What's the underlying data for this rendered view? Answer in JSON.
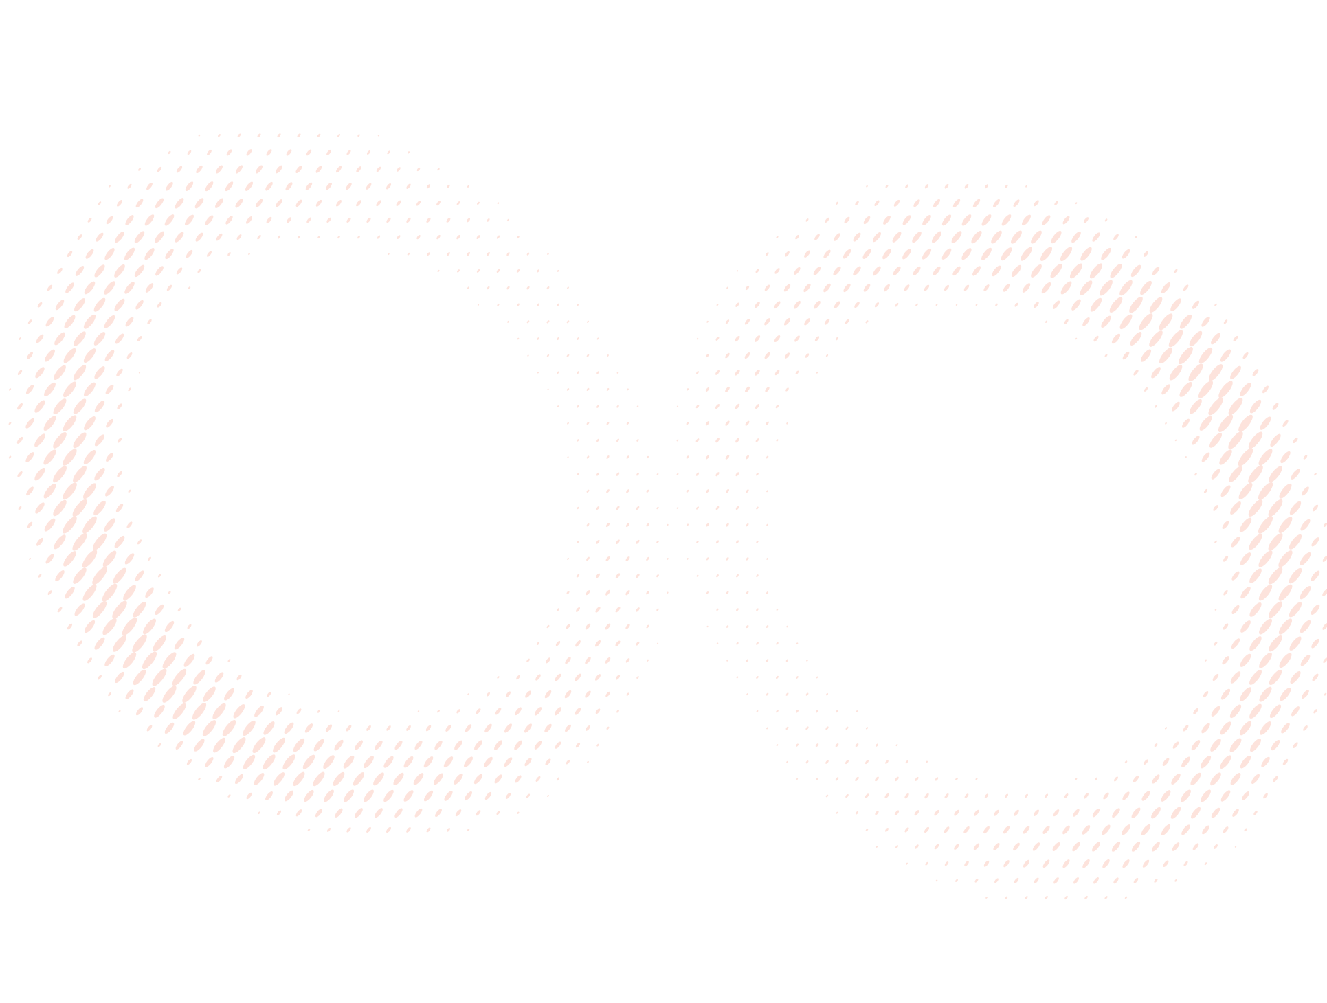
{
  "background_color": "#ffffff",
  "pattern": {
    "type": "halftone-rings",
    "dot_color": "#fde3dc",
    "dot_shape": "slanted-ellipse",
    "rings": [
      "left-ring",
      "right-ring"
    ]
  }
}
